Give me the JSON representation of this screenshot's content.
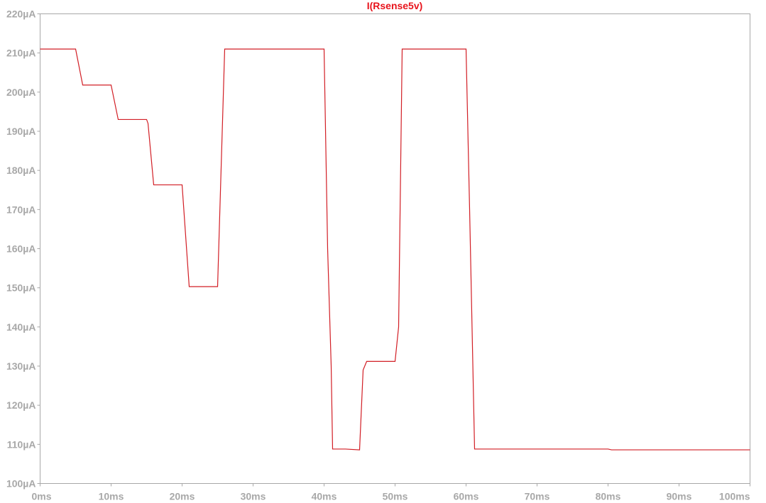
{
  "chart_data": {
    "type": "line",
    "title": "I(Rsense5v)",
    "xlabel": "",
    "ylabel": "",
    "xlim": [
      0,
      100
    ],
    "ylim": [
      100,
      220
    ],
    "grid": false,
    "x_unit": "ms",
    "y_unit": "µA",
    "x_ticks": [
      0,
      10,
      20,
      30,
      40,
      50,
      60,
      70,
      80,
      90,
      100
    ],
    "x_tick_labels": [
      "0ms",
      "10ms",
      "20ms",
      "30ms",
      "40ms",
      "50ms",
      "60ms",
      "70ms",
      "80ms",
      "90ms",
      "100ms"
    ],
    "y_ticks": [
      100,
      110,
      120,
      130,
      140,
      150,
      160,
      170,
      180,
      190,
      200,
      210,
      220
    ],
    "y_tick_labels": [
      "100µA",
      "110µA",
      "120µA",
      "130µA",
      "140µA",
      "150µA",
      "160µA",
      "170µA",
      "180µA",
      "190µA",
      "200µA",
      "210µA",
      "220µA"
    ],
    "series": [
      {
        "color": "#d21e25",
        "x": [
          0,
          5,
          6,
          10,
          11,
          15,
          15.2,
          16,
          20,
          21,
          25,
          26,
          40,
          40.5,
          41,
          41.2,
          43,
          45,
          45.5,
          46,
          50,
          50.5,
          51,
          60,
          60.5,
          61.2,
          80,
          80.5,
          100
        ],
        "y": [
          211,
          211,
          201.8,
          201.8,
          193,
          193,
          192,
          176.3,
          176.3,
          150.3,
          150.3,
          211,
          211,
          160,
          130,
          108.8,
          108.8,
          108.6,
          129,
          131.2,
          131.2,
          140,
          211,
          211,
          170,
          108.8,
          108.8,
          108.6,
          108.6
        ]
      }
    ]
  }
}
